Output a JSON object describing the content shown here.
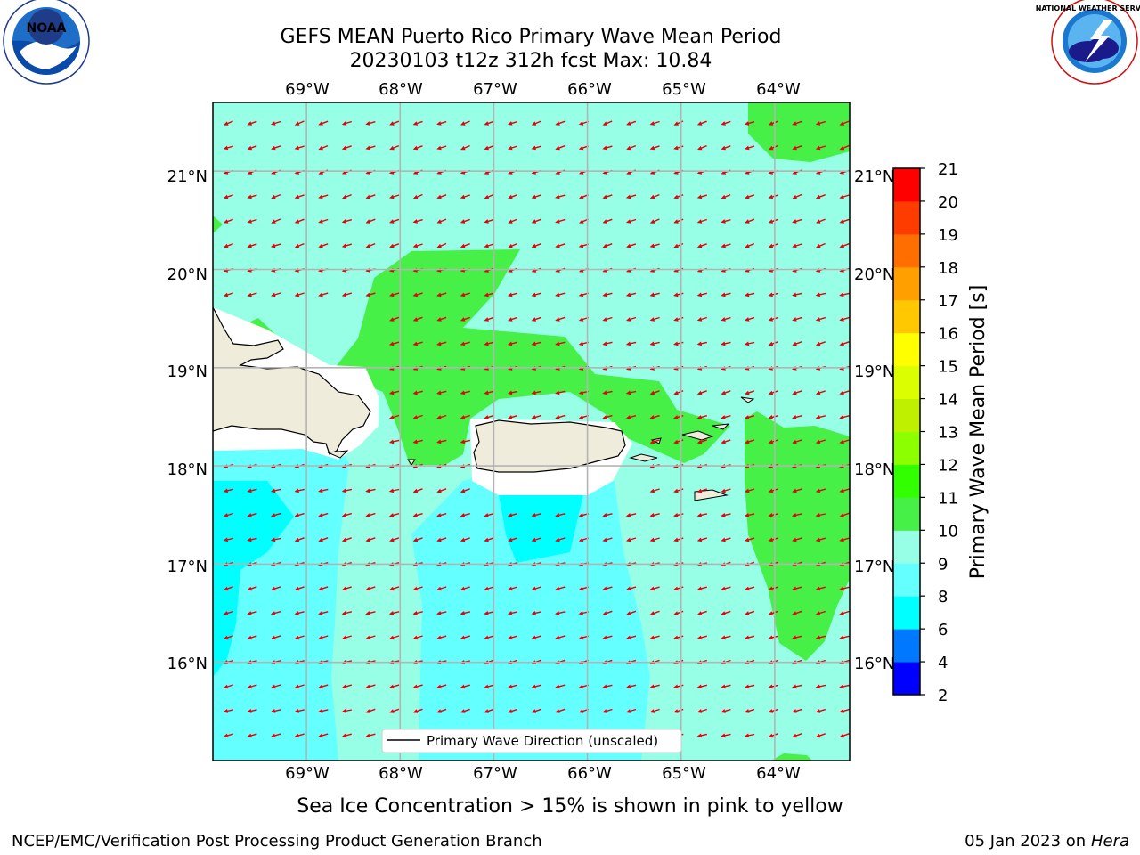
{
  "title": {
    "line1": "GEFS MEAN Puerto Rico Primary Wave Mean Period",
    "line2": "20230103 t12z 312h fcst   Max: 10.84"
  },
  "logos": {
    "noaa": "NOAA",
    "noaa_ring": "NATIONAL OCEANIC AND ATMOSPHERIC ADMINISTRATION",
    "noaa_ring_bottom": "U.S. DEPARTMENT OF COMMERCE",
    "nws_ring": "NATIONAL WEATHER SERVICE"
  },
  "axes": {
    "lon_labels": [
      "69°W",
      "68°W",
      "67°W",
      "66°W",
      "65°W",
      "64°W"
    ],
    "lat_labels": [
      "21°N",
      "20°N",
      "19°N",
      "18°N",
      "17°N",
      "16°N"
    ]
  },
  "map": {
    "region": "Puerto Rico",
    "lon_range": [
      -70.0,
      -63.2
    ],
    "lat_range": [
      15.0,
      21.7
    ],
    "vector_color": "#e8000b",
    "land_color": "#efecdc",
    "grid": true
  },
  "legend": {
    "label": "Primary Wave Direction (unscaled)",
    "placement": "lower-center"
  },
  "colorbar": {
    "label": "Primary Wave Mean Period [s]",
    "ticks": [
      "2",
      "4",
      "6",
      "8",
      "9",
      "10",
      "11",
      "12",
      "13",
      "14",
      "15",
      "16",
      "17",
      "18",
      "19",
      "20",
      "21"
    ],
    "levels": [
      {
        "lo": 2,
        "hi": 4,
        "color": "#0000ff"
      },
      {
        "lo": 4,
        "hi": 6,
        "color": "#0078ff"
      },
      {
        "lo": 6,
        "hi": 8,
        "color": "#00ffff"
      },
      {
        "lo": 8,
        "hi": 9,
        "color": "#64ffff"
      },
      {
        "lo": 9,
        "hi": 10,
        "color": "#96ffe6"
      },
      {
        "lo": 10,
        "hi": 11,
        "color": "#46f046"
      },
      {
        "lo": 11,
        "hi": 12,
        "color": "#32ff00"
      },
      {
        "lo": 12,
        "hi": 13,
        "color": "#8cff00"
      },
      {
        "lo": 13,
        "hi": 14,
        "color": "#bef000"
      },
      {
        "lo": 14,
        "hi": 15,
        "color": "#dcff00"
      },
      {
        "lo": 15,
        "hi": 16,
        "color": "#ffff00"
      },
      {
        "lo": 16,
        "hi": 17,
        "color": "#ffc800"
      },
      {
        "lo": 17,
        "hi": 18,
        "color": "#ffa000"
      },
      {
        "lo": 18,
        "hi": 19,
        "color": "#ff6e00"
      },
      {
        "lo": 19,
        "hi": 20,
        "color": "#ff3c00"
      },
      {
        "lo": 20,
        "hi": 21,
        "color": "#ff0000"
      }
    ]
  },
  "notes": {
    "sea_ice": "Sea Ice Concentration > 15% is shown in pink to yellow"
  },
  "footer": {
    "left": "NCEP/EMC/Verification Post Processing Product Generation Branch",
    "date": "05 Jan 2023 on",
    "machine": "Hera"
  }
}
